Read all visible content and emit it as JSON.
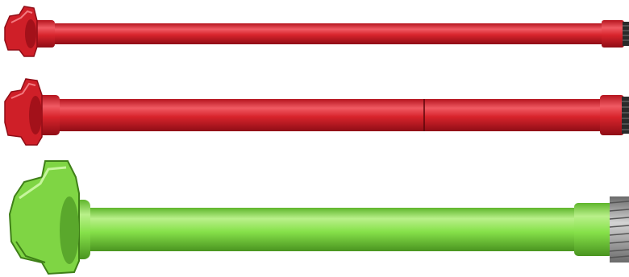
{
  "image": {
    "background": "#ffffff",
    "subjects": [
      {
        "name": "red-pup-joint-short",
        "color": "#d8242c",
        "shade": "#a3111a",
        "highlight": "#f2606a",
        "thread_color": "#2a2a2a"
      },
      {
        "name": "red-pup-joint-welded",
        "color": "#d8242c",
        "shade": "#a3111a",
        "highlight": "#f2606a",
        "thread_color": "#2a2a2a"
      },
      {
        "name": "green-pup-joint-large",
        "color": "#86e14a",
        "shade": "#4e9b22",
        "highlight": "#bff28f",
        "thread_color": "#8a8a8a"
      }
    ]
  }
}
